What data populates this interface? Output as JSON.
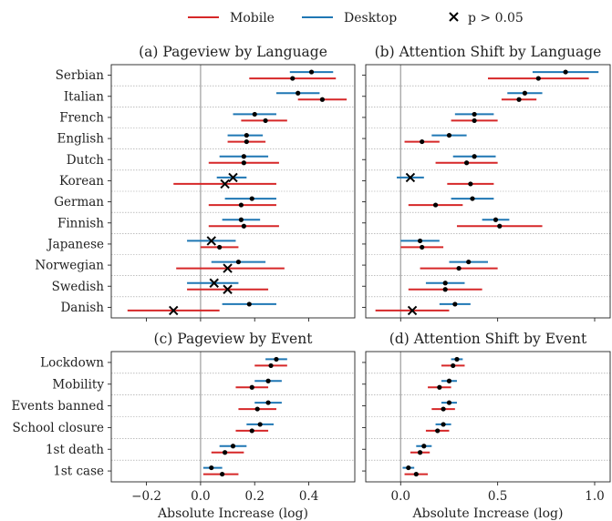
{
  "legend": [
    {
      "label": "Mobile",
      "color": "#d62728",
      "kind": "line"
    },
    {
      "label": "Desktop",
      "color": "#1f77b4",
      "kind": "line"
    },
    {
      "label": "p > 0.05",
      "color": "#000000",
      "kind": "x"
    }
  ],
  "x_axis_label": "Absolute Increase (log)",
  "chart_data": [
    {
      "type": "scatter",
      "title": "(a) Pageview by Language",
      "xlabel": "Absolute Increase (log)",
      "xlim": [
        -0.33,
        0.57
      ],
      "xticks": [
        -0.2,
        0.0,
        0.2,
        0.4
      ],
      "xtick_labels": [
        "−0.2",
        "0.0",
        "0.2",
        "0.4"
      ],
      "categories": [
        "Serbian",
        "Italian",
        "French",
        "English",
        "Dutch",
        "Korean",
        "German",
        "Finnish",
        "Japanese",
        "Norwegian",
        "Swedish",
        "Danish"
      ],
      "series": [
        {
          "name": "Desktop",
          "color": "#1f77b4",
          "values": [
            0.41,
            0.36,
            0.2,
            0.17,
            0.16,
            0.12,
            0.19,
            0.15,
            0.04,
            0.14,
            0.05,
            0.18
          ],
          "ci_low": [
            0.33,
            0.28,
            0.12,
            0.1,
            0.07,
            0.06,
            0.09,
            0.08,
            -0.05,
            0.04,
            -0.05,
            0.08
          ],
          "ci_high": [
            0.49,
            0.44,
            0.28,
            0.23,
            0.25,
            0.17,
            0.28,
            0.22,
            0.13,
            0.24,
            0.14,
            0.28
          ],
          "significant": [
            true,
            true,
            true,
            true,
            true,
            false,
            true,
            true,
            false,
            true,
            false,
            true
          ]
        },
        {
          "name": "Mobile",
          "color": "#d62728",
          "values": [
            0.34,
            0.45,
            0.24,
            0.17,
            0.16,
            0.09,
            0.15,
            0.16,
            0.07,
            0.1,
            0.1,
            -0.1
          ],
          "ci_low": [
            0.18,
            0.36,
            0.15,
            0.1,
            0.03,
            -0.1,
            0.03,
            0.03,
            0.0,
            -0.09,
            -0.05,
            -0.27
          ],
          "ci_high": [
            0.5,
            0.54,
            0.32,
            0.24,
            0.29,
            0.28,
            0.28,
            0.29,
            0.14,
            0.31,
            0.25,
            0.07
          ],
          "significant": [
            true,
            true,
            true,
            true,
            true,
            false,
            true,
            true,
            true,
            false,
            false,
            false
          ]
        }
      ]
    },
    {
      "type": "scatter",
      "title": "(b) Attention Shift by Language",
      "xlabel": "Absolute Increase (log)",
      "xlim": [
        -0.18,
        1.08
      ],
      "xticks": [
        0.0,
        0.5,
        1.0
      ],
      "xtick_labels": [
        "0.0",
        "0.5",
        "1.0"
      ],
      "categories": [
        "Serbian",
        "Italian",
        "French",
        "English",
        "Dutch",
        "Korean",
        "German",
        "Finnish",
        "Japanese",
        "Norwegian",
        "Swedish",
        "Danish"
      ],
      "series": [
        {
          "name": "Desktop",
          "color": "#1f77b4",
          "values": [
            0.85,
            0.64,
            0.38,
            0.25,
            0.38,
            0.05,
            0.37,
            0.49,
            0.1,
            0.35,
            0.23,
            0.28
          ],
          "ci_low": [
            0.68,
            0.55,
            0.28,
            0.16,
            0.27,
            -0.02,
            0.26,
            0.42,
            0.0,
            0.25,
            0.13,
            0.2
          ],
          "ci_high": [
            1.02,
            0.73,
            0.48,
            0.34,
            0.49,
            0.12,
            0.48,
            0.56,
            0.2,
            0.45,
            0.33,
            0.36
          ],
          "significant": [
            true,
            true,
            true,
            true,
            true,
            false,
            true,
            true,
            true,
            true,
            true,
            true
          ]
        },
        {
          "name": "Mobile",
          "color": "#d62728",
          "values": [
            0.71,
            0.61,
            0.38,
            0.11,
            0.34,
            0.36,
            0.18,
            0.51,
            0.11,
            0.3,
            0.23,
            0.06
          ],
          "ci_low": [
            0.45,
            0.52,
            0.26,
            0.02,
            0.18,
            0.24,
            0.04,
            0.29,
            0.0,
            0.1,
            0.04,
            -0.13
          ],
          "ci_high": [
            0.97,
            0.7,
            0.5,
            0.2,
            0.5,
            0.48,
            0.32,
            0.73,
            0.22,
            0.5,
            0.42,
            0.25
          ],
          "significant": [
            true,
            true,
            true,
            true,
            true,
            true,
            true,
            true,
            true,
            true,
            true,
            false
          ]
        }
      ]
    },
    {
      "type": "scatter",
      "title": "(c) Pageview by Event",
      "xlabel": "Absolute Increase (log)",
      "xlim": [
        -0.33,
        0.57
      ],
      "xticks": [
        -0.2,
        0.0,
        0.2,
        0.4
      ],
      "xtick_labels": [
        "−0.2",
        "0.0",
        "0.2",
        "0.4"
      ],
      "categories": [
        "Lockdown",
        "Mobility",
        "Events banned",
        "School closure",
        "1st death",
        "1st case"
      ],
      "series": [
        {
          "name": "Desktop",
          "color": "#1f77b4",
          "values": [
            0.28,
            0.25,
            0.25,
            0.22,
            0.12,
            0.04
          ],
          "ci_low": [
            0.24,
            0.2,
            0.2,
            0.17,
            0.07,
            0.01
          ],
          "ci_high": [
            0.32,
            0.3,
            0.3,
            0.27,
            0.17,
            0.08
          ],
          "significant": [
            true,
            true,
            true,
            true,
            true,
            true
          ]
        },
        {
          "name": "Mobile",
          "color": "#d62728",
          "values": [
            0.26,
            0.19,
            0.21,
            0.19,
            0.09,
            0.08
          ],
          "ci_low": [
            0.2,
            0.13,
            0.14,
            0.13,
            0.04,
            0.01
          ],
          "ci_high": [
            0.32,
            0.25,
            0.28,
            0.25,
            0.16,
            0.14
          ],
          "significant": [
            true,
            true,
            true,
            true,
            true,
            true
          ]
        }
      ]
    },
    {
      "type": "scatter",
      "title": "(d) Attention Shift by Event",
      "xlabel": "Absolute Increase (log)",
      "xlim": [
        -0.18,
        1.08
      ],
      "xticks": [
        0.0,
        0.5,
        1.0
      ],
      "xtick_labels": [
        "0.0",
        "0.5",
        "1.0"
      ],
      "categories": [
        "Lockdown",
        "Mobility",
        "Events banned",
        "School closure",
        "1st death",
        "1st case"
      ],
      "series": [
        {
          "name": "Desktop",
          "color": "#1f77b4",
          "values": [
            0.29,
            0.25,
            0.25,
            0.22,
            0.12,
            0.04
          ],
          "ci_low": [
            0.26,
            0.21,
            0.21,
            0.18,
            0.08,
            0.01
          ],
          "ci_high": [
            0.32,
            0.29,
            0.29,
            0.26,
            0.16,
            0.07
          ],
          "significant": [
            true,
            true,
            true,
            true,
            true,
            true
          ]
        },
        {
          "name": "Mobile",
          "color": "#d62728",
          "values": [
            0.27,
            0.2,
            0.22,
            0.19,
            0.1,
            0.08
          ],
          "ci_low": [
            0.21,
            0.14,
            0.16,
            0.13,
            0.05,
            0.02
          ],
          "ci_high": [
            0.33,
            0.26,
            0.28,
            0.25,
            0.15,
            0.14
          ],
          "significant": [
            true,
            true,
            true,
            true,
            true,
            true
          ]
        }
      ]
    }
  ]
}
